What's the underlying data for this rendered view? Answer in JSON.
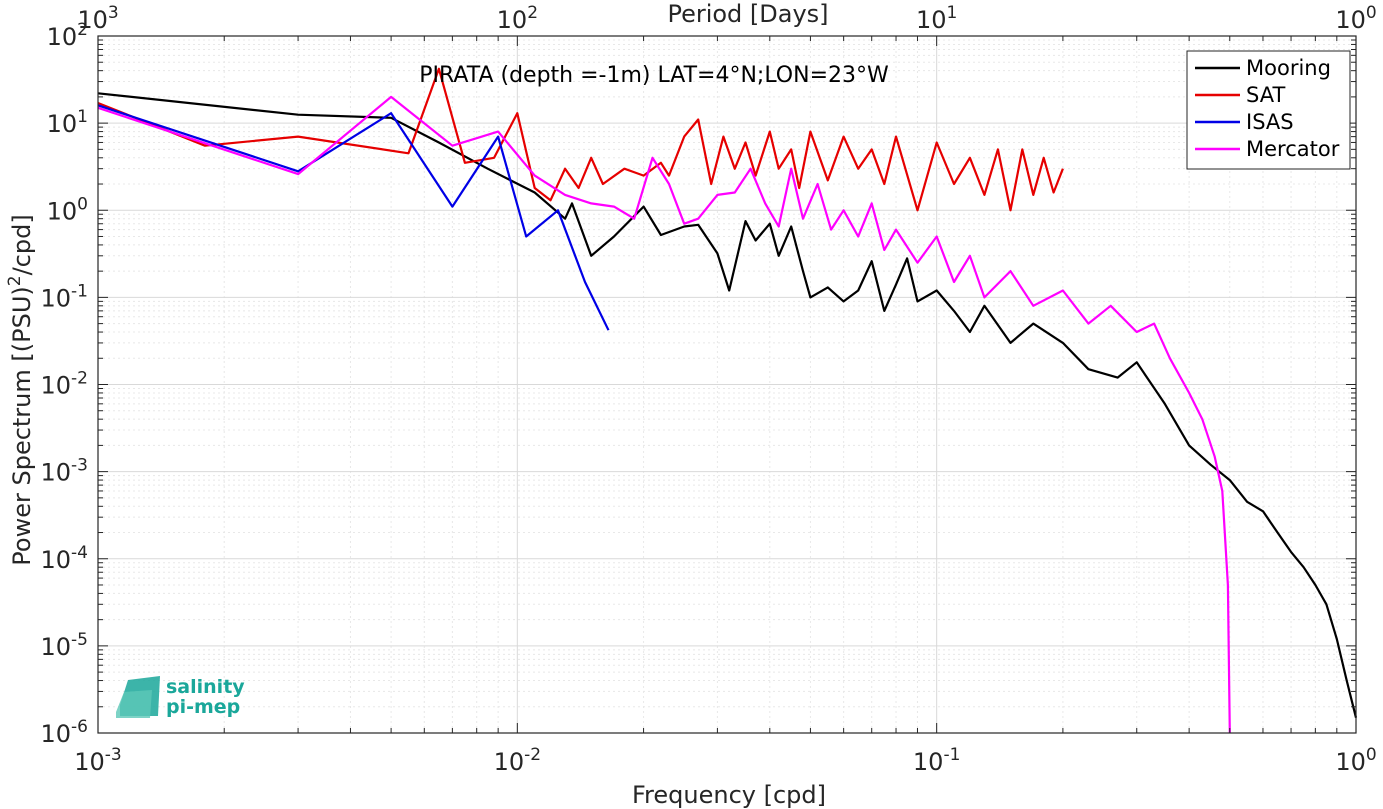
{
  "chart_data": {
    "type": "line",
    "title": "PIRATA (depth =-1m) LAT=4°N;LON=23°W",
    "xlabel": "Frequency [cpd]",
    "ylabel": "Power Spectrum [(PSU)^2/cpd]",
    "top_xlabel": "Period [Days]",
    "xscale": "log",
    "yscale": "log",
    "xlim": [
      0.001,
      1
    ],
    "ylim": [
      1e-06,
      100
    ],
    "grid": true,
    "legend_position": "top-right",
    "x_ticks": [
      {
        "value": 0.001,
        "base": "10",
        "exp": "-3"
      },
      {
        "value": 0.01,
        "base": "10",
        "exp": "-2"
      },
      {
        "value": 0.1,
        "base": "10",
        "exp": "-1"
      },
      {
        "value": 1,
        "base": "10",
        "exp": "0"
      }
    ],
    "top_ticks": [
      {
        "value": 0.001,
        "base": "10",
        "exp": "3"
      },
      {
        "value": 0.01,
        "base": "10",
        "exp": "2"
      },
      {
        "value": 0.1,
        "base": "10",
        "exp": "1"
      },
      {
        "value": 1,
        "base": "10",
        "exp": "0"
      }
    ],
    "y_ticks": [
      {
        "value": 100,
        "base": "10",
        "exp": "2"
      },
      {
        "value": 10,
        "base": "10",
        "exp": "1"
      },
      {
        "value": 1,
        "base": "10",
        "exp": "0"
      },
      {
        "value": 0.1,
        "base": "10",
        "exp": "-1"
      },
      {
        "value": 0.01,
        "base": "10",
        "exp": "-2"
      },
      {
        "value": 0.001,
        "base": "10",
        "exp": "-3"
      },
      {
        "value": 0.0001,
        "base": "10",
        "exp": "-4"
      },
      {
        "value": 1e-05,
        "base": "10",
        "exp": "-5"
      },
      {
        "value": 1e-06,
        "base": "10",
        "exp": "-6"
      }
    ],
    "series": [
      {
        "name": "Mooring",
        "color": "#000000",
        "points": [
          [
            0.001,
            22
          ],
          [
            0.003,
            12.5
          ],
          [
            0.005,
            11.5
          ],
          [
            0.0065,
            6
          ],
          [
            0.0085,
            3
          ],
          [
            0.011,
            1.6
          ],
          [
            0.013,
            0.8
          ],
          [
            0.0135,
            1.2
          ],
          [
            0.015,
            0.3
          ],
          [
            0.017,
            0.5
          ],
          [
            0.02,
            1.1
          ],
          [
            0.022,
            0.52
          ],
          [
            0.025,
            0.65
          ],
          [
            0.027,
            0.68
          ],
          [
            0.03,
            0.32
          ],
          [
            0.032,
            0.12
          ],
          [
            0.035,
            0.75
          ],
          [
            0.037,
            0.45
          ],
          [
            0.04,
            0.7
          ],
          [
            0.042,
            0.3
          ],
          [
            0.045,
            0.65
          ],
          [
            0.048,
            0.2
          ],
          [
            0.05,
            0.1
          ],
          [
            0.055,
            0.13
          ],
          [
            0.06,
            0.09
          ],
          [
            0.065,
            0.12
          ],
          [
            0.07,
            0.26
          ],
          [
            0.075,
            0.07
          ],
          [
            0.08,
            0.14
          ],
          [
            0.085,
            0.28
          ],
          [
            0.09,
            0.09
          ],
          [
            0.1,
            0.12
          ],
          [
            0.11,
            0.07
          ],
          [
            0.12,
            0.04
          ],
          [
            0.13,
            0.08
          ],
          [
            0.15,
            0.03
          ],
          [
            0.17,
            0.05
          ],
          [
            0.2,
            0.03
          ],
          [
            0.23,
            0.015
          ],
          [
            0.27,
            0.012
          ],
          [
            0.3,
            0.018
          ],
          [
            0.35,
            0.006
          ],
          [
            0.4,
            0.002
          ],
          [
            0.45,
            0.0012
          ],
          [
            0.5,
            0.0008
          ],
          [
            0.55,
            0.00045
          ],
          [
            0.6,
            0.00035
          ],
          [
            0.65,
            0.0002
          ],
          [
            0.7,
            0.00012
          ],
          [
            0.75,
            8e-05
          ],
          [
            0.8,
            5e-05
          ],
          [
            0.85,
            3e-05
          ],
          [
            0.9,
            1.2e-05
          ],
          [
            0.95,
            4e-06
          ],
          [
            1.0,
            1.5e-06
          ]
        ]
      },
      {
        "name": "SAT",
        "color": "#e60000",
        "points": [
          [
            0.001,
            17
          ],
          [
            0.0018,
            5.5
          ],
          [
            0.003,
            7
          ],
          [
            0.0055,
            4.5
          ],
          [
            0.0065,
            42
          ],
          [
            0.0075,
            3.5
          ],
          [
            0.0088,
            4
          ],
          [
            0.01,
            13
          ],
          [
            0.011,
            1.8
          ],
          [
            0.012,
            1.3
          ],
          [
            0.013,
            3
          ],
          [
            0.014,
            1.8
          ],
          [
            0.015,
            4
          ],
          [
            0.016,
            2
          ],
          [
            0.018,
            3
          ],
          [
            0.02,
            2.5
          ],
          [
            0.022,
            3.5
          ],
          [
            0.023,
            2.5
          ],
          [
            0.025,
            7
          ],
          [
            0.027,
            11
          ],
          [
            0.029,
            2
          ],
          [
            0.031,
            7
          ],
          [
            0.033,
            3
          ],
          [
            0.035,
            6
          ],
          [
            0.037,
            2.5
          ],
          [
            0.04,
            8
          ],
          [
            0.042,
            3
          ],
          [
            0.045,
            5
          ],
          [
            0.047,
            1.8
          ],
          [
            0.05,
            8
          ],
          [
            0.055,
            2.2
          ],
          [
            0.06,
            7
          ],
          [
            0.065,
            3
          ],
          [
            0.07,
            5
          ],
          [
            0.075,
            2
          ],
          [
            0.08,
            7
          ],
          [
            0.09,
            1
          ],
          [
            0.1,
            6
          ],
          [
            0.11,
            2
          ],
          [
            0.12,
            4
          ],
          [
            0.13,
            1.5
          ],
          [
            0.14,
            5
          ],
          [
            0.15,
            1
          ],
          [
            0.16,
            5
          ],
          [
            0.17,
            1.5
          ],
          [
            0.18,
            4
          ],
          [
            0.19,
            1.6
          ],
          [
            0.2,
            3
          ]
        ]
      },
      {
        "name": "ISAS",
        "color": "#0000e6",
        "points": [
          [
            0.001,
            16
          ],
          [
            0.003,
            2.8
          ],
          [
            0.005,
            13
          ],
          [
            0.007,
            1.1
          ],
          [
            0.009,
            7
          ],
          [
            0.0105,
            0.5
          ],
          [
            0.0125,
            1
          ],
          [
            0.0145,
            0.15
          ],
          [
            0.0165,
            0.042
          ]
        ]
      },
      {
        "name": "Mercator",
        "color": "#ff00ff",
        "points": [
          [
            0.001,
            15
          ],
          [
            0.003,
            2.6
          ],
          [
            0.005,
            20
          ],
          [
            0.007,
            5.5
          ],
          [
            0.009,
            8
          ],
          [
            0.011,
            2.5
          ],
          [
            0.013,
            1.5
          ],
          [
            0.015,
            1.2
          ],
          [
            0.017,
            1.1
          ],
          [
            0.019,
            0.8
          ],
          [
            0.021,
            4
          ],
          [
            0.023,
            2
          ],
          [
            0.025,
            0.7
          ],
          [
            0.027,
            0.8
          ],
          [
            0.03,
            1.5
          ],
          [
            0.033,
            1.6
          ],
          [
            0.036,
            3
          ],
          [
            0.039,
            1.2
          ],
          [
            0.042,
            0.65
          ],
          [
            0.045,
            3
          ],
          [
            0.048,
            0.8
          ],
          [
            0.052,
            2
          ],
          [
            0.056,
            0.6
          ],
          [
            0.06,
            1
          ],
          [
            0.065,
            0.5
          ],
          [
            0.07,
            1.2
          ],
          [
            0.075,
            0.35
          ],
          [
            0.08,
            0.6
          ],
          [
            0.09,
            0.25
          ],
          [
            0.1,
            0.5
          ],
          [
            0.11,
            0.15
          ],
          [
            0.12,
            0.3
          ],
          [
            0.13,
            0.1
          ],
          [
            0.15,
            0.2
          ],
          [
            0.17,
            0.08
          ],
          [
            0.2,
            0.12
          ],
          [
            0.23,
            0.05
          ],
          [
            0.26,
            0.08
          ],
          [
            0.3,
            0.04
          ],
          [
            0.33,
            0.05
          ],
          [
            0.36,
            0.02
          ],
          [
            0.4,
            0.008
          ],
          [
            0.43,
            0.004
          ],
          [
            0.46,
            0.0015
          ],
          [
            0.48,
            0.0006
          ],
          [
            0.495,
            5e-05
          ],
          [
            0.5,
            9e-07
          ]
        ]
      }
    ]
  },
  "logo": {
    "line1": "salinity",
    "line2": "pi-mep"
  }
}
